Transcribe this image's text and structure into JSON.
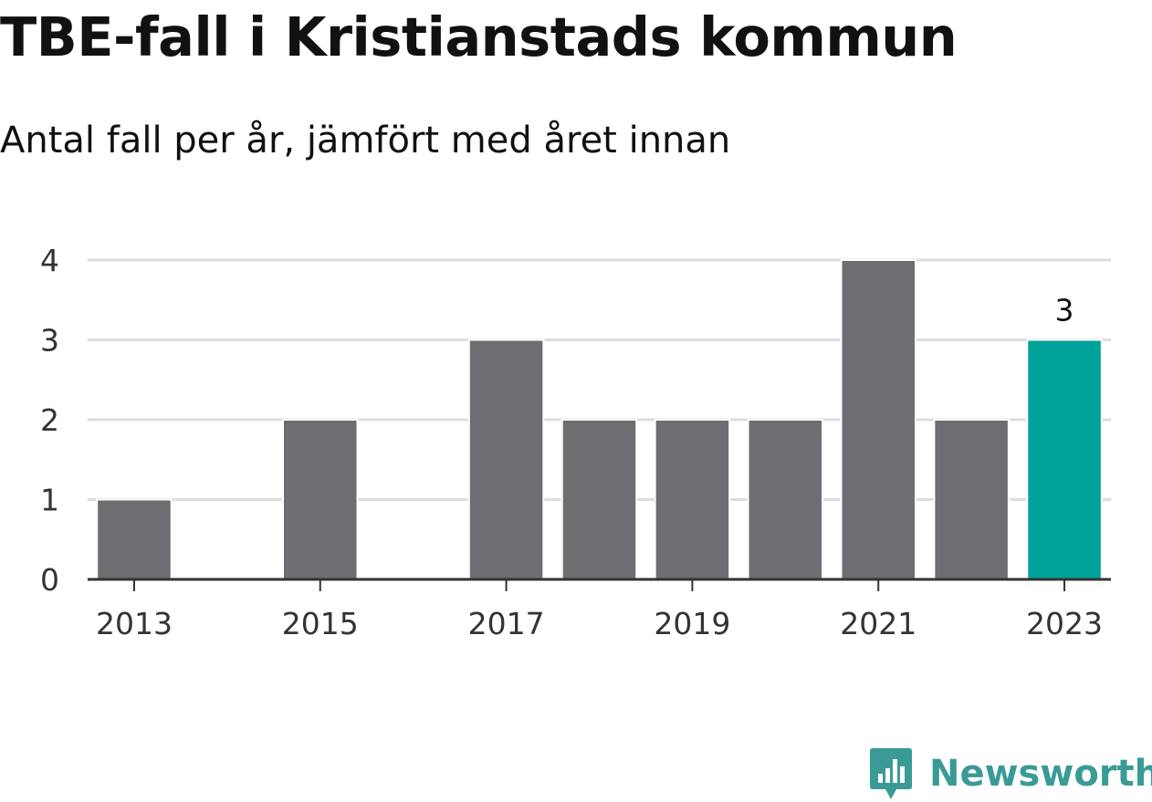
{
  "header": {
    "title": "TBE-fall i Kristianstads kommun",
    "subtitle": "Antal fall per år, jämfört med året innan"
  },
  "brand": {
    "name": "Newsworthy",
    "icon": "newsworthy-logo-icon",
    "color": "#3a9b96"
  },
  "chart_data": {
    "type": "bar",
    "categories": [
      "2013",
      "2014",
      "2015",
      "2016",
      "2017",
      "2018",
      "2019",
      "2020",
      "2021",
      "2022",
      "2023"
    ],
    "values": [
      1,
      0,
      2,
      0,
      3,
      2,
      2,
      2,
      4,
      2,
      3
    ],
    "xticks": [
      "2013",
      "2015",
      "2017",
      "2019",
      "2021",
      "2023"
    ],
    "yticks": [
      0,
      1,
      2,
      3,
      4
    ],
    "ylim": [
      0,
      4
    ],
    "grid": true,
    "highlight_category": "2023",
    "value_labels": [
      {
        "category": "2023",
        "label": "3"
      }
    ],
    "colors": {
      "bar": "#6e6d72",
      "highlight": "#00a399",
      "grid": "#dddddd",
      "axis": "#333333"
    }
  }
}
